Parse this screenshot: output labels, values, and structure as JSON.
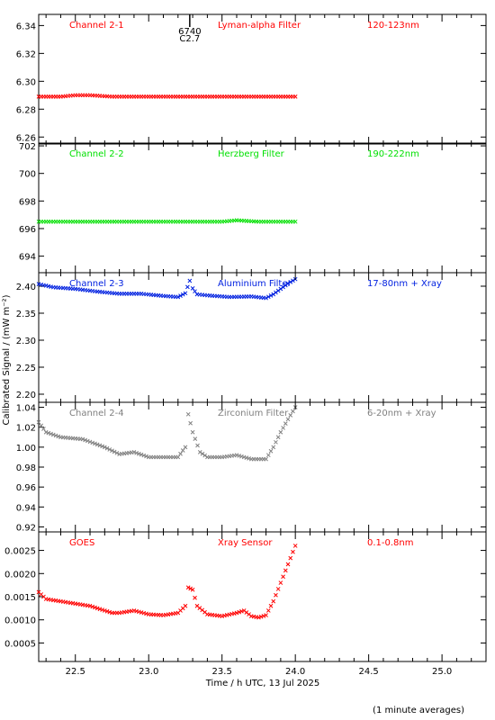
{
  "footer_note": "(1 minute averages)",
  "xlabel": "Time / h UTC, 13 Jul 2025",
  "ylabel": "Calibrated Signal / (mW m⁻²)",
  "marker": {
    "x": 23.28,
    "label_top": "6740",
    "label_bottom": "C2.7",
    "color": "#000000"
  },
  "chart_data": [
    {
      "type": "scatter",
      "name": "Channel 2-1",
      "filter": "Lyman-alpha Filter",
      "band": "120-123nm",
      "color": "#ff0000",
      "xlim": [
        22.25,
        25.3
      ],
      "ylim": [
        6.255,
        6.348
      ],
      "yticks": [
        "6.26",
        "6.28",
        "6.30",
        "6.32",
        "6.34"
      ],
      "x": [
        22.25,
        22.4,
        22.5,
        22.6,
        22.75,
        23.0,
        23.25,
        23.5,
        23.75,
        24.0
      ],
      "y": [
        6.289,
        6.289,
        6.29,
        6.29,
        6.289,
        6.289,
        6.289,
        6.289,
        6.289,
        6.289
      ]
    },
    {
      "type": "scatter",
      "name": "Channel 2-2",
      "filter": "Herzberg Filter",
      "band": "190-222nm",
      "color": "#00e000",
      "xlim": [
        22.25,
        25.3
      ],
      "ylim": [
        692.8,
        702.2
      ],
      "yticks": [
        "694",
        "696",
        "698",
        "700",
        "702"
      ],
      "x": [
        22.25,
        22.5,
        22.75,
        23.0,
        23.25,
        23.5,
        23.6,
        23.75,
        24.0
      ],
      "y": [
        696.5,
        696.5,
        696.5,
        696.5,
        696.5,
        696.5,
        696.6,
        696.5,
        696.5
      ]
    },
    {
      "type": "scatter",
      "name": "Channel 2-3",
      "filter": "Aluminium Filter",
      "band": "17-80nm + Xray",
      "color": "#0020e0",
      "xlim": [
        22.25,
        25.3
      ],
      "ylim": [
        2.185,
        2.425
      ],
      "yticks": [
        "2.20",
        "2.25",
        "2.30",
        "2.35",
        "2.40"
      ],
      "x": [
        22.25,
        22.35,
        22.5,
        22.65,
        22.8,
        22.95,
        23.1,
        23.2,
        23.25,
        23.28,
        23.3,
        23.33,
        23.4,
        23.55,
        23.7,
        23.8,
        23.85,
        23.9,
        23.95,
        24.0
      ],
      "y": [
        2.404,
        2.398,
        2.395,
        2.39,
        2.386,
        2.386,
        2.382,
        2.38,
        2.387,
        2.41,
        2.396,
        2.385,
        2.383,
        2.38,
        2.381,
        2.378,
        2.385,
        2.395,
        2.405,
        2.413
      ]
    },
    {
      "type": "scatter",
      "name": "Channel 2-4",
      "filter": "Zirconium Filter",
      "band": "6-20nm + Xray",
      "color": "#808080",
      "xlim": [
        22.25,
        25.3
      ],
      "ylim": [
        0.915,
        1.045
      ],
      "yticks": [
        "0.92",
        "0.94",
        "0.96",
        "0.98",
        "1.00",
        "1.02",
        "1.04"
      ],
      "x": [
        22.25,
        22.3,
        22.4,
        22.55,
        22.7,
        22.8,
        22.9,
        23.0,
        23.1,
        23.2,
        23.25,
        23.27,
        23.3,
        23.35,
        23.4,
        23.5,
        23.6,
        23.7,
        23.8,
        23.85,
        23.9,
        23.95,
        24.0
      ],
      "y": [
        1.025,
        1.015,
        1.01,
        1.008,
        1.0,
        0.993,
        0.995,
        0.99,
        0.99,
        0.99,
        1.0,
        1.033,
        1.015,
        0.995,
        0.99,
        0.99,
        0.992,
        0.988,
        0.988,
        1.0,
        1.015,
        1.028,
        1.04
      ]
    },
    {
      "type": "scatter",
      "name": "GOES",
      "filter": "Xray Sensor",
      "band": "0.1-0.8nm",
      "color": "#ff0000",
      "xlim": [
        22.25,
        25.3
      ],
      "ylim": [
        0.0001,
        0.0029
      ],
      "yticks": [
        "0.0005",
        "0.0010",
        "0.0015",
        "0.0020",
        "0.0025"
      ],
      "x": [
        22.25,
        22.3,
        22.4,
        22.5,
        22.6,
        22.7,
        22.75,
        22.8,
        22.9,
        23.0,
        23.1,
        23.2,
        23.25,
        23.27,
        23.3,
        23.33,
        23.4,
        23.5,
        23.6,
        23.65,
        23.7,
        23.75,
        23.8,
        23.85,
        23.9,
        23.95,
        24.0
      ],
      "y": [
        0.0016,
        0.00145,
        0.0014,
        0.00135,
        0.0013,
        0.0012,
        0.00115,
        0.00115,
        0.0012,
        0.00112,
        0.0011,
        0.00115,
        0.0013,
        0.0017,
        0.00165,
        0.0013,
        0.00112,
        0.00108,
        0.00115,
        0.0012,
        0.00108,
        0.00105,
        0.0011,
        0.0014,
        0.0018,
        0.0022,
        0.0026
      ]
    }
  ]
}
